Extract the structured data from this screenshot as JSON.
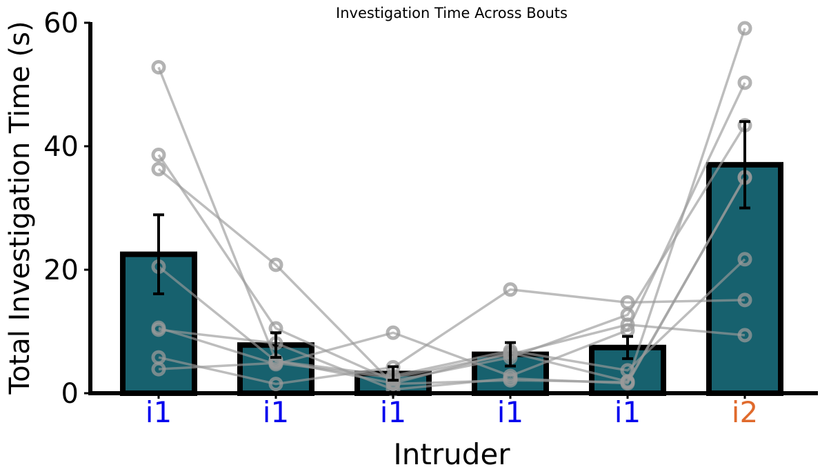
{
  "chart_data": {
    "type": "bar",
    "title": "Investigation Time Across Bouts",
    "xlabel": "Intruder",
    "ylabel": "Total Investigation Time (s)",
    "ylim": [
      0,
      60
    ],
    "yticks": [
      "0",
      "20",
      "40",
      "60"
    ],
    "categories": [
      "i1",
      "i1",
      "i1",
      "i1",
      "i1",
      "i2"
    ],
    "category_colors": [
      "#0000ee",
      "#0000ee",
      "#0000ee",
      "#0000ee",
      "#0000ee",
      "#e06a2c"
    ],
    "values": [
      22.5,
      7.8,
      3.2,
      6.3,
      7.4,
      37.0
    ],
    "errors": [
      6.4,
      2.0,
      1.1,
      1.9,
      1.8,
      7.0
    ],
    "bar_color": "#17616e",
    "edge_color": "#000000",
    "line_color": "#9a9a9a",
    "subjects": [
      [
        52.8,
        5.3,
        1.6,
        6.6,
        1.9,
        59.1
      ],
      [
        38.6,
        10.5,
        2.0,
        5.8,
        12.7,
        43.4
      ],
      [
        36.3,
        20.8,
        1.5,
        2.1,
        1.8,
        34.9
      ],
      [
        20.5,
        5.2,
        2.8,
        6.9,
        3.7,
        21.7
      ],
      [
        10.6,
        4.7,
        9.8,
        2.8,
        10.2,
        50.3
      ],
      [
        5.8,
        1.5,
        4.2,
        16.8,
        14.7,
        15.1
      ],
      [
        3.9,
        4.9,
        2.5,
        6.3,
        11.1,
        9.4
      ],
      [
        10.3,
        8.1,
        0.6,
        2.4,
        1.6,
        35.0
      ]
    ]
  }
}
